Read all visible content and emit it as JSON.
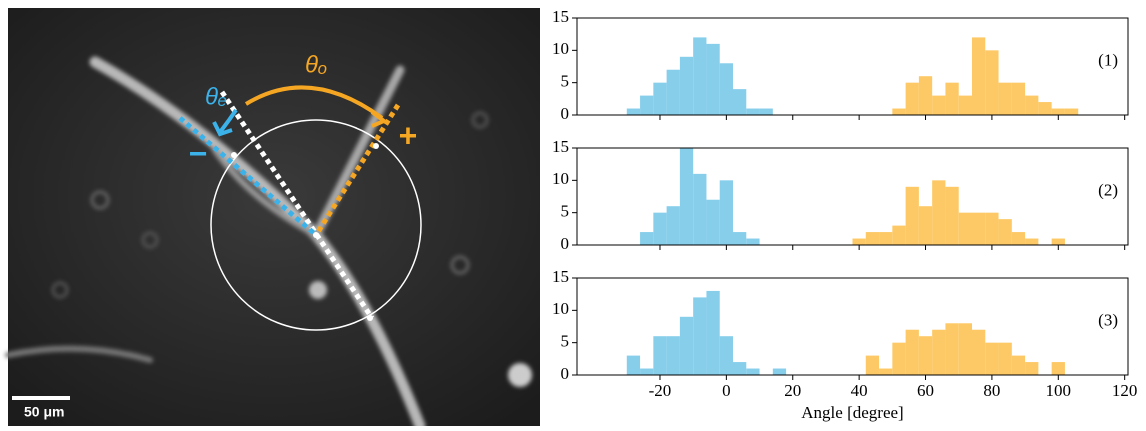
{
  "image": {
    "theta_o": "θₒ",
    "theta_e": "θₑ",
    "plus": "+",
    "minus": "−",
    "scale_bar": "50 μm"
  },
  "chart_data": [
    {
      "type": "histogram",
      "label": "(1)",
      "ylim": [
        0,
        15
      ],
      "yticks": [
        0,
        5,
        10,
        15
      ],
      "xlim": [
        -45,
        121
      ],
      "series": [
        {
          "color": "#87ceeb",
          "bins": [
            -30,
            -26,
            -22,
            -18,
            -14,
            -10,
            -6,
            -2,
            2,
            6,
            10,
            14
          ],
          "values": [
            1,
            3,
            5,
            7,
            9,
            12,
            11,
            8,
            4,
            1,
            1
          ]
        },
        {
          "color": "#fdc966",
          "bins": [
            50,
            54,
            58,
            62,
            66,
            70,
            74,
            78,
            82,
            86,
            90,
            94,
            98,
            102,
            106
          ],
          "values": [
            1,
            5,
            6,
            3,
            5,
            3,
            12,
            10,
            5,
            5,
            3,
            2,
            1,
            1
          ]
        }
      ]
    },
    {
      "type": "histogram",
      "label": "(2)",
      "ylim": [
        0,
        15
      ],
      "yticks": [
        0,
        5,
        10,
        15
      ],
      "xlim": [
        -45,
        121
      ],
      "series": [
        {
          "color": "#87ceeb",
          "bins": [
            -26,
            -22,
            -18,
            -14,
            -10,
            -6,
            -2,
            2,
            6,
            10
          ],
          "values": [
            2,
            5,
            6,
            15,
            11,
            7,
            10,
            2,
            1
          ]
        },
        {
          "color": "#fdc966",
          "bins": [
            38,
            42,
            46,
            50,
            54,
            58,
            62,
            66,
            70,
            74,
            78,
            82,
            86,
            90,
            94,
            98,
            102
          ],
          "values": [
            1,
            2,
            2,
            3,
            9,
            6,
            10,
            9,
            5,
            5,
            5,
            4,
            2,
            1,
            0,
            1
          ]
        }
      ]
    },
    {
      "type": "histogram",
      "label": "(3)",
      "ylim": [
        0,
        15
      ],
      "yticks": [
        0,
        5,
        10,
        15
      ],
      "xlim": [
        -45,
        121
      ],
      "xticks": [
        -20,
        0,
        20,
        40,
        60,
        80,
        100,
        120
      ],
      "xlabel": "Angle [degree]",
      "series": [
        {
          "color": "#87ceeb",
          "bins": [
            -30,
            -26,
            -22,
            -18,
            -14,
            -10,
            -6,
            -2,
            2,
            6,
            10,
            14,
            18
          ],
          "values": [
            3,
            1,
            6,
            6,
            9,
            12,
            13,
            6,
            2,
            1,
            0,
            1
          ]
        },
        {
          "color": "#fdc966",
          "bins": [
            42,
            46,
            50,
            54,
            58,
            62,
            66,
            70,
            74,
            78,
            82,
            86,
            90,
            94,
            98,
            102
          ],
          "values": [
            3,
            1,
            5,
            7,
            6,
            7,
            8,
            8,
            7,
            5,
            5,
            3,
            2,
            0,
            2
          ]
        }
      ]
    }
  ]
}
